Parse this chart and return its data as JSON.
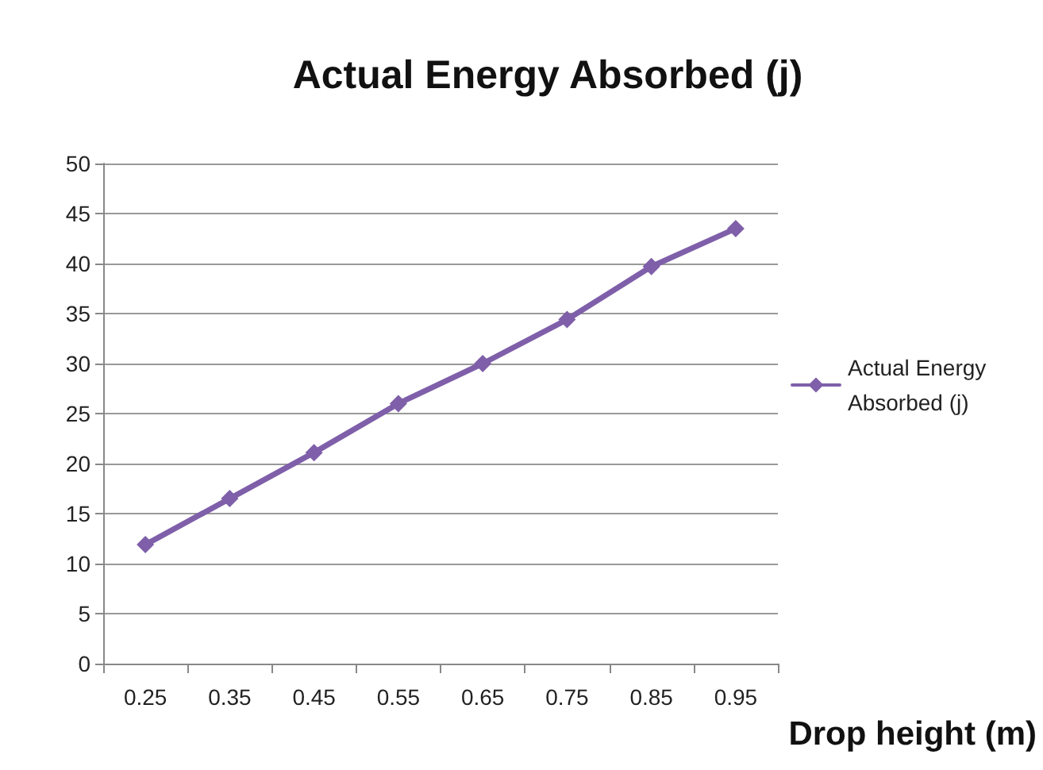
{
  "chart_data": {
    "type": "line",
    "title": "Actual Energy Absorbed (j)",
    "xlabel": "Drop height (m)",
    "categories": [
      "0.25",
      "0.35",
      "0.45",
      "0.55",
      "0.65",
      "0.75",
      "0.85",
      "0.95"
    ],
    "series": [
      {
        "name": "Actual Energy Absorbed (j)",
        "color": "#7f5fa9",
        "values": [
          11.9,
          16.5,
          21.1,
          26.0,
          30.0,
          34.4,
          39.7,
          43.5
        ]
      }
    ],
    "ylim": [
      0,
      50
    ],
    "yticks": [
      0,
      5,
      10,
      15,
      20,
      25,
      30,
      35,
      40,
      45,
      50
    ],
    "grid": "y",
    "legend": "right",
    "marker": "diamond",
    "line_style": "solid"
  }
}
